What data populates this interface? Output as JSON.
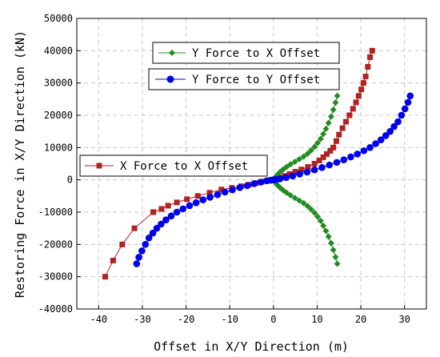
{
  "chart_data": {
    "type": "scatter",
    "xlabel": "Offset in X/Y Direction (m)",
    "ylabel": "Restoring Force in X/Y Direction (kN)",
    "xlim": [
      -45,
      35
    ],
    "ylim": [
      -40000,
      50000
    ],
    "xticks": [
      -40,
      -30,
      -20,
      -10,
      0,
      10,
      20,
      30
    ],
    "yticks": [
      -40000,
      -30000,
      -20000,
      -10000,
      0,
      10000,
      20000,
      30000,
      40000,
      50000
    ],
    "grid": true,
    "series": [
      {
        "name": "X Force to X Offset",
        "color": "#b22222",
        "marker": "square",
        "x": [
          -38.5,
          -36.7,
          -34.6,
          -31.8,
          -27.5,
          -25.6,
          -24.1,
          -22.1,
          -19.8,
          -17.3,
          -14.6,
          -11.9,
          -9.5,
          -7.4,
          -5.6,
          -4.0,
          -2.7,
          -1.6,
          -0.7,
          0,
          0.8,
          1.6,
          2.6,
          3.7,
          5.0,
          6.4,
          7.9,
          9.4,
          10.5,
          11.4,
          12.2,
          13.0,
          13.7,
          14.4,
          15.0,
          15.8,
          16.6,
          17.4,
          18.2,
          18.9,
          19.5,
          20.1,
          20.6,
          21.1,
          21.6,
          22.1,
          22.6
        ],
        "y": [
          -30000,
          -25000,
          -20000,
          -15000,
          -10000,
          -9000,
          -8000,
          -7000,
          -6000,
          -5000,
          -4000,
          -3000,
          -2500,
          -2000,
          -1500,
          -1000,
          -600,
          -300,
          -100,
          0,
          300,
          700,
          1200,
          1800,
          2500,
          3200,
          4000,
          5000,
          6000,
          7000,
          8000,
          9000,
          10000,
          12000,
          14000,
          16000,
          18000,
          20000,
          22000,
          24000,
          26000,
          28000,
          30000,
          32000,
          35000,
          38000,
          40000
        ]
      },
      {
        "name": "Y Force to X Offset",
        "color": "#228b22",
        "marker": "diamond",
        "x": [
          0,
          0.4,
          0.9,
          1.5,
          2.2,
          3.0,
          3.9,
          4.9,
          5.9,
          6.9,
          7.8,
          8.6,
          9.4,
          10.1,
          10.8,
          11.4,
          12.0,
          12.6,
          13.2,
          13.7,
          14.2,
          14.6,
          0.4,
          0.9,
          1.5,
          2.2,
          3.0,
          3.9,
          4.9,
          5.9,
          6.9,
          7.8,
          8.6,
          9.4,
          10.1,
          10.8,
          11.4,
          12.0,
          12.6,
          13.2,
          13.7,
          14.2,
          14.6
        ],
        "y": [
          0,
          800,
          1600,
          2400,
          3200,
          4000,
          4800,
          5600,
          6400,
          7200,
          8100,
          9100,
          10200,
          11400,
          12700,
          14200,
          15800,
          17600,
          19600,
          21700,
          23900,
          26000,
          -800,
          -1600,
          -2400,
          -3200,
          -4000,
          -4800,
          -5600,
          -6400,
          -7200,
          -8100,
          -9100,
          -10200,
          -11400,
          -12700,
          -14200,
          -15800,
          -17600,
          -19600,
          -21700,
          -23900,
          -26000
        ]
      },
      {
        "name": "Y Force to Y Offset",
        "color": "#0000ee",
        "marker": "circle",
        "x": [
          -31.3,
          -30.8,
          -30.1,
          -29.3,
          -28.5,
          -27.6,
          -26.7,
          -25.7,
          -24.6,
          -23.4,
          -22.1,
          -20.7,
          -19.2,
          -17.7,
          -16.1,
          -14.5,
          -12.8,
          -11.1,
          -9.4,
          -7.7,
          -6.0,
          -4.4,
          -2.9,
          -1.5,
          -0.6,
          0,
          0.6,
          1.5,
          2.9,
          4.4,
          6.0,
          7.7,
          9.4,
          11.1,
          12.8,
          14.5,
          16.1,
          17.7,
          19.2,
          20.7,
          22.1,
          23.4,
          24.6,
          25.7,
          26.7,
          27.6,
          28.5,
          29.3,
          30.1,
          30.8,
          31.3
        ],
        "y": [
          -26000,
          -24000,
          -22000,
          -20000,
          -18000,
          -16500,
          -15000,
          -13700,
          -12400,
          -11200,
          -10000,
          -9000,
          -8000,
          -7100,
          -6200,
          -5400,
          -4600,
          -3800,
          -3100,
          -2400,
          -1800,
          -1200,
          -700,
          -300,
          -100,
          0,
          100,
          300,
          700,
          1200,
          1800,
          2400,
          3100,
          3800,
          4600,
          5400,
          6200,
          7100,
          8000,
          9000,
          10000,
          11200,
          12400,
          13700,
          15000,
          16500,
          18000,
          20000,
          22000,
          24000,
          26000
        ]
      }
    ]
  },
  "legend": {
    "items": [
      {
        "label": "Y Force to X Offset",
        "color": "#228b22",
        "marker": "diamond"
      },
      {
        "label": "Y Force to Y Offset",
        "color": "#0000ee",
        "marker": "circle"
      },
      {
        "label": "X Force to X Offset",
        "color": "#b22222",
        "marker": "square"
      }
    ]
  }
}
